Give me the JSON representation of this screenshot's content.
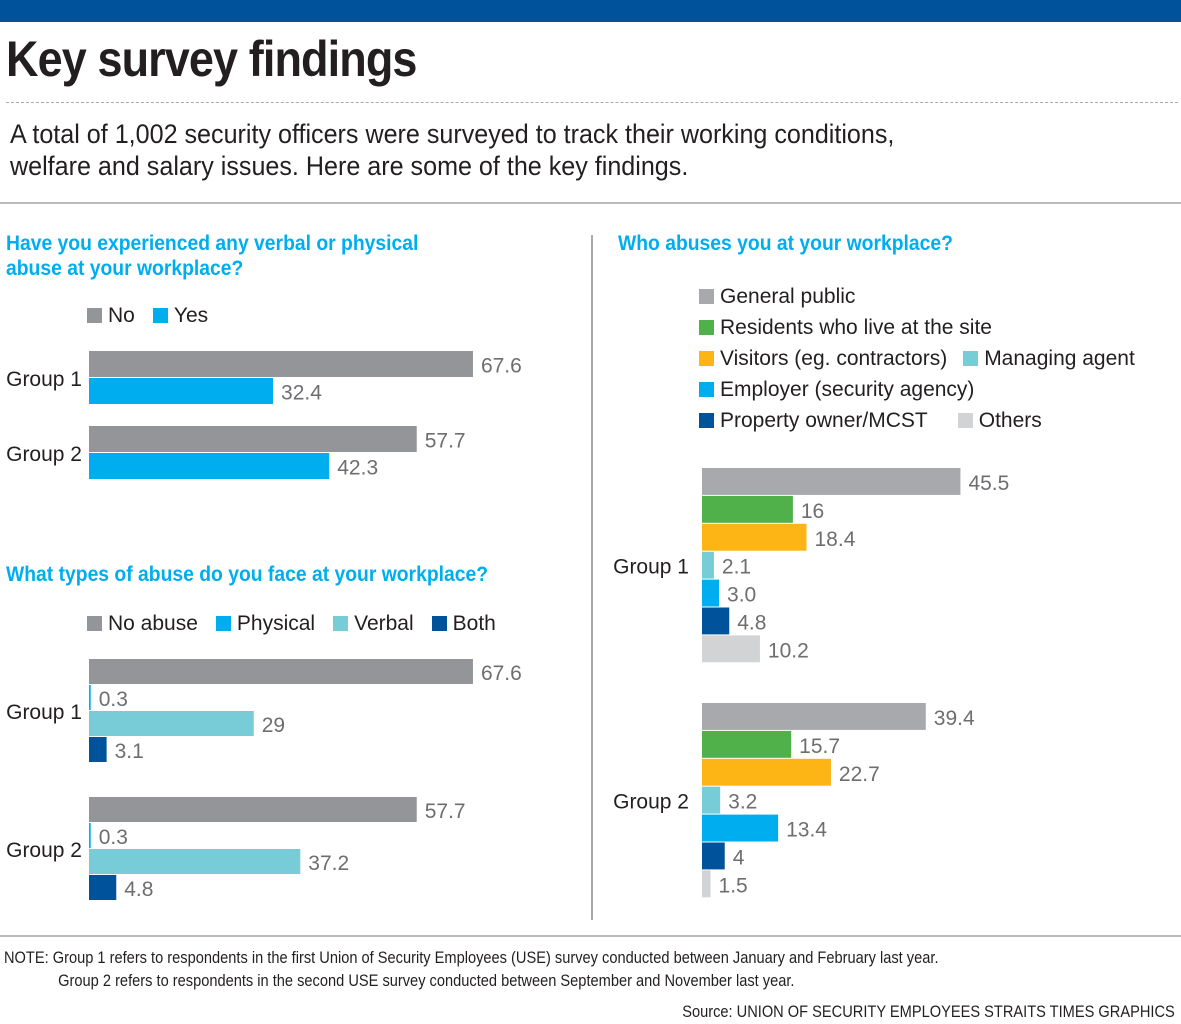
{
  "header": {
    "title": "Key survey findings",
    "intro_line1": "A total of 1,002 security officers were surveyed to track their working conditions,",
    "intro_line2": "welfare and salary issues. Here are some of the key findings."
  },
  "colors": {
    "top_bar": "#00529b",
    "question": "#00aeef",
    "gray": "#939598",
    "cyan": "#00aeef",
    "light_teal": "#77ccd8",
    "navy": "#00529b",
    "green": "#50b04a",
    "orange": "#fdb515",
    "light_gray": "#d1d3d4"
  },
  "chart_data": [
    {
      "type": "bar",
      "orientation": "horizontal",
      "title": "Have you experienced any verbal or physical abuse at your workplace?",
      "title_line1": "Have you experienced any verbal or physical",
      "title_line2": "abuse at your workplace?",
      "categories": [
        "Group 1",
        "Group 2"
      ],
      "series": [
        {
          "name": "No",
          "color": "#939598",
          "values": [
            67.6,
            57.7
          ],
          "labels": [
            "67.6",
            "57.7"
          ]
        },
        {
          "name": "Yes",
          "color": "#00aeef",
          "values": [
            32.4,
            42.3
          ],
          "labels": [
            "32.4",
            "42.3"
          ]
        }
      ],
      "legend_position": "top",
      "units": "percent",
      "xlim": [
        0,
        100
      ]
    },
    {
      "type": "bar",
      "orientation": "horizontal",
      "title": "What types of abuse do you face at your workplace?",
      "categories": [
        "Group 1",
        "Group 2"
      ],
      "series": [
        {
          "name": "No abuse",
          "color": "#939598",
          "values": [
            67.6,
            57.7
          ],
          "labels": [
            "67.6",
            "57.7"
          ]
        },
        {
          "name": "Physical",
          "color": "#00aeef",
          "values": [
            0.3,
            0.3
          ],
          "labels": [
            "0.3",
            "0.3"
          ]
        },
        {
          "name": "Verbal",
          "color": "#77ccd8",
          "values": [
            29,
            37.2
          ],
          "labels": [
            "29",
            "37.2"
          ]
        },
        {
          "name": "Both",
          "color": "#00529b",
          "values": [
            3.1,
            4.8
          ],
          "labels": [
            "3.1",
            "4.8"
          ]
        }
      ],
      "legend_position": "top",
      "units": "percent",
      "xlim": [
        0,
        100
      ]
    },
    {
      "type": "bar",
      "orientation": "horizontal",
      "title": "Who abuses you at your workplace?",
      "categories": [
        "Group 1",
        "Group 2"
      ],
      "series": [
        {
          "name": "General public",
          "color": "#a7a9ac",
          "values": [
            45.5,
            39.4
          ],
          "labels": [
            "45.5",
            "39.4"
          ]
        },
        {
          "name": "Residents who live at the site",
          "color": "#50b04a",
          "values": [
            16,
            15.7
          ],
          "labels": [
            "16",
            "15.7"
          ]
        },
        {
          "name": "Visitors (eg. contractors)",
          "color": "#fdb515",
          "values": [
            18.4,
            22.7
          ],
          "labels": [
            "18.4",
            "22.7"
          ]
        },
        {
          "name": "Managing agent",
          "color": "#77ccd8",
          "values": [
            2.1,
            3.2
          ],
          "labels": [
            "2.1",
            "3.2"
          ]
        },
        {
          "name": "Employer (security agency)",
          "color": "#00aeef",
          "values": [
            3.0,
            13.4
          ],
          "labels": [
            "3.0",
            "13.4"
          ]
        },
        {
          "name": "Property owner/MCST",
          "color": "#00529b",
          "values": [
            4.8,
            4
          ],
          "labels": [
            "4.8",
            "4"
          ]
        },
        {
          "name": "Others",
          "color": "#d1d3d4",
          "values": [
            10.2,
            1.5
          ],
          "labels": [
            "10.2",
            "1.5"
          ]
        }
      ],
      "legend_position": "top",
      "units": "percent",
      "xlim": [
        0,
        100
      ]
    }
  ],
  "footer": {
    "note_line1": "NOTE:  Group 1 refers to respondents in the first Union of Security Employees (USE) survey conducted between January and February last year.",
    "note_line2": "Group 2 refers to respondents in the second USE survey conducted between September and November last year.",
    "source": "Source: UNION OF SECURITY EMPLOYEES   STRAITS TIMES GRAPHICS"
  }
}
